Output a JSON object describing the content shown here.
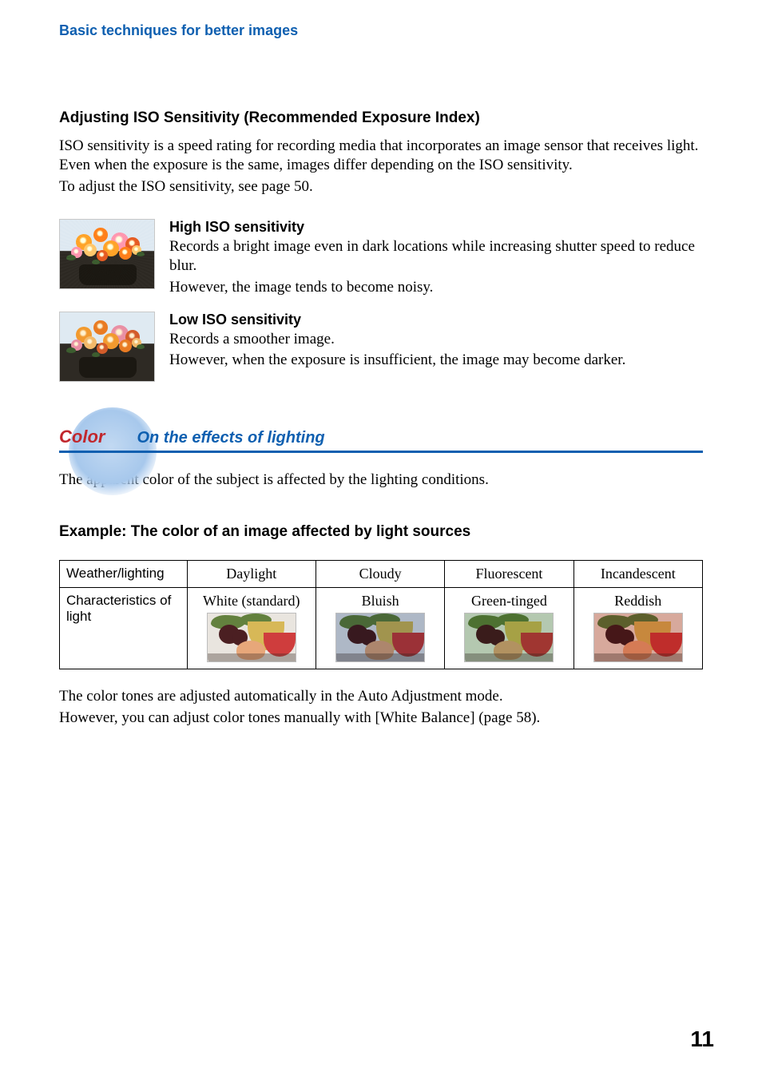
{
  "breadcrumb": "Basic techniques for better images",
  "iso_heading": "Adjusting ISO Sensitivity (Recommended Exposure Index)",
  "iso_intro_1": "ISO sensitivity is a speed rating for recording media that incorporates an image sensor that receives light. Even when the exposure is the same, images differ depending on the ISO sensitivity.",
  "iso_intro_2": "To adjust the ISO sensitivity, see page 50.",
  "high_iso": {
    "heading": "High ISO sensitivity",
    "line1": "Records a bright image even in dark locations while increasing shutter speed to reduce blur.",
    "line2": "However, the image tends to become noisy."
  },
  "low_iso": {
    "heading": "Low ISO sensitivity",
    "line1": "Records a smoother image.",
    "line2": "However, when the exposure is insufficient, the image may become darker."
  },
  "flower_thumb": {
    "background_top": "#dfeaf2",
    "background_bottom": "#2e2a24",
    "pot_color": "#1b1812",
    "flower_colors": [
      "#f29a2e",
      "#e97b22",
      "#e98fa4",
      "#d35c2a",
      "#f2b96a"
    ],
    "leaf_color": "#3c5d2f"
  },
  "color_section": {
    "label": "Color",
    "subtitle": "On the effects of lighting",
    "intro": "The apparent color of the subject is affected by the lighting conditions.",
    "example_heading": "Example: The color of an image affected by light sources",
    "circle_gradient_inner": "#c2d9f2",
    "circle_gradient_outer": "rgba(255,255,255,0)",
    "rule_color": "#0e5fb0",
    "label_color": "#c1272d"
  },
  "lighting_table": {
    "row_headers": [
      "Weather/lighting",
      "Characteristics of light"
    ],
    "columns": [
      {
        "lighting": "Daylight",
        "characteristic": "White (standard)",
        "tint": "none",
        "overlay": "rgba(0,0,0,0)"
      },
      {
        "lighting": "Cloudy",
        "characteristic": "Bluish",
        "tint": "blue",
        "overlay": "rgba(56,98,168,0.32)"
      },
      {
        "lighting": "Fluorescent",
        "characteristic": "Green-tinged",
        "tint": "green",
        "overlay": "rgba(64,150,80,0.30)"
      },
      {
        "lighting": "Incandescent",
        "characteristic": "Reddish",
        "tint": "red",
        "overlay": "rgba(200,60,30,0.34)"
      }
    ],
    "header_font": "Arial",
    "header_fontsize": 17,
    "cell_font": "Times New Roman",
    "cell_fontsize": 18,
    "border_color": "#000000"
  },
  "food_thumb": {
    "colors": {
      "plate": "#e9e5df",
      "melon": "#d7b857",
      "watermelon": "#cf3d3d",
      "grape": "#4b1f22",
      "leaf": "#63813e",
      "peach": "#e7a77a",
      "shadow": "#3b2a26"
    }
  },
  "outro_1": "The color tones are adjusted automatically in the Auto Adjustment mode.",
  "outro_2": "However, you can adjust color tones manually with [White Balance] (page 58).",
  "page_number": "11"
}
